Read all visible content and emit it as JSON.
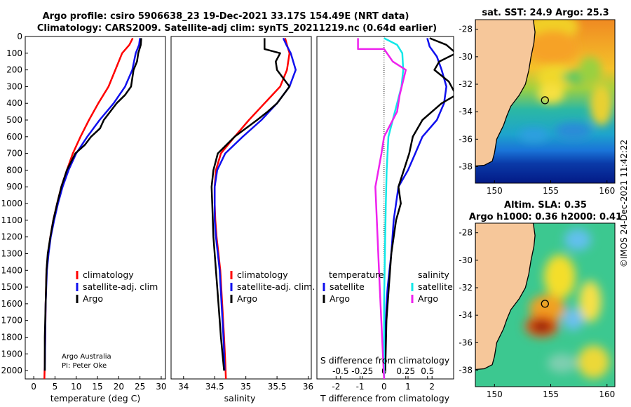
{
  "header": {
    "line1": "Argo profile: csiro 5906638_23 19-Dec-2021 33.17S 154.49E (NRT data)",
    "line2": "Climatology: CARS2009. Satellite-adj clim: synTS_20211219.nc (0.64d earlier)"
  },
  "credit": {
    "org": "Argo Australia",
    "pi": "PI: Peter Oke"
  },
  "timestamp": "©IMOS 24-Dec-2021 11:42:22",
  "colors": {
    "red": "#ff0000",
    "blue": "#1010ee",
    "black": "#000000",
    "cyan": "#11e8e8",
    "magenta": "#ee22ee",
    "land": "#f6c79a"
  },
  "chart_data": [
    {
      "id": "temperature",
      "type": "line",
      "xlabel": "temperature (deg C)",
      "xlim": [
        -2,
        31
      ],
      "xticks": [
        0,
        5,
        10,
        15,
        20,
        25,
        30
      ],
      "ylim": [
        2050,
        0
      ],
      "yticks": [
        0,
        100,
        200,
        300,
        400,
        500,
        600,
        700,
        800,
        900,
        1000,
        1100,
        1200,
        1300,
        1400,
        1500,
        1600,
        1700,
        1800,
        1900,
        2000
      ],
      "legend": {
        "entries": [
          "climatology",
          "satellite-adj. clim",
          "Argo"
        ]
      },
      "series": [
        {
          "name": "climatology",
          "color": "red",
          "x": [
            23.3,
            22.5,
            20.8,
            19.2,
            17.6,
            15.2,
            13.0,
            11.0,
            9.2,
            7.8,
            6.5,
            5.5,
            4.6,
            3.9,
            3.4,
            3.0,
            2.8,
            2.7,
            2.6,
            2.5
          ],
          "y": [
            10,
            50,
            100,
            200,
            300,
            400,
            500,
            600,
            700,
            800,
            900,
            1000,
            1100,
            1200,
            1300,
            1400,
            1600,
            1800,
            1950,
            2050
          ]
        },
        {
          "name": "satellite-adj. clim",
          "color": "blue",
          "x": [
            25.0,
            24.8,
            24.0,
            23.2,
            21.5,
            18.8,
            15.5,
            12.6,
            10.0,
            8.2,
            6.8,
            5.7,
            4.8,
            4.0,
            3.5,
            3.1,
            2.8,
            2.7,
            2.6
          ],
          "y": [
            10,
            50,
            100,
            200,
            300,
            400,
            500,
            600,
            700,
            800,
            900,
            1000,
            1100,
            1200,
            1300,
            1400,
            1600,
            1800,
            2000
          ]
        },
        {
          "name": "Argo",
          "color": "black",
          "x": [
            25.3,
            25.2,
            24.6,
            24.3,
            23.5,
            22.9,
            21.5,
            19.5,
            16.5,
            15.6,
            13.5,
            12.0,
            9.8,
            7.8,
            6.5,
            5.5,
            4.6,
            3.9,
            3.3,
            3.0,
            2.8,
            2.6,
            2.6
          ],
          "y": [
            10,
            50,
            100,
            150,
            200,
            300,
            350,
            400,
            500,
            550,
            600,
            650,
            700,
            800,
            900,
            1000,
            1100,
            1200,
            1300,
            1400,
            1600,
            1800,
            2000
          ]
        }
      ]
    },
    {
      "id": "salinity",
      "type": "line",
      "xlabel": "salinity",
      "xlim": [
        33.8,
        36.05
      ],
      "xticks": [
        34,
        34.5,
        35,
        35.5,
        36
      ],
      "ylim": [
        2050,
        0
      ],
      "legend": {
        "entries": [
          "climatology",
          "satellite-adj. clim.",
          "Argo"
        ]
      },
      "series": [
        {
          "name": "climatology",
          "color": "red",
          "x": [
            35.63,
            35.66,
            35.7,
            35.66,
            35.55,
            35.3,
            35.05,
            34.82,
            34.6,
            34.52,
            34.5,
            34.5,
            34.51,
            34.53,
            34.56,
            34.59,
            34.62,
            34.65,
            34.67,
            34.68
          ],
          "y": [
            10,
            50,
            100,
            200,
            300,
            400,
            500,
            600,
            700,
            800,
            900,
            1000,
            1100,
            1200,
            1300,
            1400,
            1600,
            1800,
            1950,
            2050
          ]
        },
        {
          "name": "satellite-adj. clim",
          "color": "blue",
          "x": [
            35.6,
            35.65,
            35.72,
            35.8,
            35.7,
            35.5,
            35.25,
            34.95,
            34.67,
            34.54,
            34.5,
            34.5,
            34.5,
            34.52,
            34.55,
            34.58,
            34.61,
            34.64,
            34.66
          ],
          "y": [
            10,
            50,
            100,
            200,
            300,
            400,
            500,
            600,
            700,
            800,
            900,
            1000,
            1100,
            1200,
            1300,
            1400,
            1600,
            1800,
            2000
          ]
        },
        {
          "name": "Argo",
          "color": "black",
          "x": [
            35.3,
            35.3,
            35.55,
            35.48,
            35.5,
            35.7,
            35.5,
            35.35,
            35.18,
            34.82,
            34.55,
            34.48,
            34.45,
            34.46,
            34.48,
            34.52,
            34.56,
            34.6,
            34.65
          ],
          "y": [
            10,
            75,
            100,
            150,
            200,
            300,
            400,
            450,
            500,
            600,
            700,
            800,
            900,
            1000,
            1200,
            1400,
            1600,
            1800,
            2000
          ]
        }
      ]
    },
    {
      "id": "difference",
      "type": "line",
      "xlabel": "T difference from climatology",
      "xlabel2": "S difference from climatology",
      "xlim": [
        -2.8,
        2.9
      ],
      "xticks": [
        -2,
        -1,
        0,
        1,
        2
      ],
      "xticks2": [
        -0.5,
        -0.25,
        0,
        0.25,
        0.5
      ],
      "ylim": [
        2050,
        0
      ],
      "legend": {
        "temperature_title": "temperature",
        "salinity_title": "salinity",
        "entries": [
          "satellite",
          "Argo",
          "satellite",
          "Argo"
        ]
      },
      "series": [
        {
          "name": "temperature satellite",
          "color": "blue",
          "x": [
            1.8,
            1.9,
            2.2,
            2.4,
            2.6,
            2.5,
            2.2,
            1.6,
            1.3,
            1.0,
            0.6,
            0.4,
            0.3,
            0.15,
            0.1,
            0.05,
            0.0,
            0.0
          ],
          "y": [
            10,
            60,
            120,
            200,
            300,
            400,
            500,
            600,
            700,
            800,
            900,
            1100,
            1300,
            1500,
            1600,
            1800,
            1950,
            2050
          ]
        },
        {
          "name": "temperature Argo",
          "color": "black",
          "x": [
            1.9,
            2.6,
            3.0,
            2.3,
            2.1,
            2.7,
            3.0,
            2.4,
            2.0,
            1.6,
            1.2,
            1.05,
            0.6,
            0.7,
            0.5,
            0.4,
            0.3,
            0.2,
            0.1,
            0.05
          ],
          "y": [
            10,
            50,
            100,
            150,
            200,
            270,
            350,
            400,
            450,
            500,
            600,
            700,
            900,
            1000,
            1100,
            1200,
            1300,
            1500,
            1700,
            2000
          ]
        },
        {
          "name": "salinity satellite",
          "color": "cyan",
          "x": [
            0.0,
            0.15,
            0.21,
            0.22,
            0.2,
            0.15,
            0.1,
            0.05,
            0.03,
            0.02,
            0.01,
            0.0,
            0.0
          ],
          "y": [
            10,
            50,
            100,
            200,
            300,
            400,
            500,
            600,
            800,
            1000,
            1300,
            1600,
            2050
          ]
        },
        {
          "name": "salinity Argo",
          "color": "magenta",
          "x": [
            -0.3,
            -0.3,
            0.0,
            0.1,
            0.25,
            0.18,
            0.15,
            0.0,
            -0.03,
            -0.1,
            -0.05,
            0.0
          ],
          "y": [
            10,
            75,
            75,
            150,
            200,
            350,
            450,
            600,
            700,
            900,
            1500,
            2050
          ]
        }
      ]
    },
    {
      "id": "sst-map",
      "type": "heatmap",
      "title": "sat. SST: 24.9 Argo: 25.3",
      "xticks": [
        150,
        155,
        160
      ],
      "yticks": [
        -28,
        -30,
        -32,
        -34,
        -36,
        -38
      ],
      "xlim": [
        148.3,
        160.7
      ],
      "ylim": [
        -39.2,
        -27.3
      ],
      "marker": {
        "lon": 154.49,
        "lat": -33.17
      },
      "coast": [
        [
          153.45,
          -27.3
        ],
        [
          153.6,
          -28.2
        ],
        [
          153.5,
          -29
        ],
        [
          153.25,
          -30
        ],
        [
          153.05,
          -31
        ],
        [
          152.75,
          -32
        ],
        [
          152.2,
          -32.8
        ],
        [
          151.45,
          -33.6
        ],
        [
          151.1,
          -34.3
        ],
        [
          150.8,
          -35
        ],
        [
          150.2,
          -36
        ],
        [
          150.0,
          -37
        ],
        [
          149.8,
          -37.6
        ],
        [
          149.1,
          -37.9
        ],
        [
          148.3,
          -37.95
        ]
      ],
      "blobs": [
        {
          "lon": 155.2,
          "lat": -27.8,
          "rx": 2.3,
          "ry": 1.0,
          "color": "#f1cf28"
        },
        {
          "lon": 155.2,
          "lat": -29.3,
          "rx": 2.2,
          "ry": 1.2,
          "color": "#f6a226"
        },
        {
          "lon": 155.4,
          "lat": -31.5,
          "rx": 1.6,
          "ry": 0.9,
          "color": "#f0d82a"
        },
        {
          "lon": 155.0,
          "lat": -32.7,
          "rx": 1.2,
          "ry": 0.7,
          "color": "#f6e040"
        },
        {
          "lon": 157.3,
          "lat": -31.5,
          "rx": 1.3,
          "ry": 0.5,
          "color": "#5ec860"
        },
        {
          "lon": 158.5,
          "lat": -31.0,
          "rx": 1.0,
          "ry": 1.0,
          "color": "#9ad040"
        },
        {
          "lon": 159.5,
          "lat": -33.5,
          "rx": 1.0,
          "ry": 1.5,
          "color": "#e8d030"
        },
        {
          "lon": 157.0,
          "lat": -35.4,
          "rx": 1.6,
          "ry": 0.6,
          "color": "#2b8bd8"
        },
        {
          "lon": 153.5,
          "lat": -35.7,
          "rx": 1.3,
          "ry": 0.5,
          "color": "#2f9fe0"
        }
      ]
    },
    {
      "id": "sla-map",
      "type": "heatmap",
      "title1": "Altim. SLA: 0.35",
      "title2": "Argo h1000: 0.36 h2000: 0.41",
      "xticks": [
        150,
        155,
        160
      ],
      "yticks": [
        -28,
        -30,
        -32,
        -34,
        -36,
        -38
      ],
      "xlim": [
        148.3,
        160.7
      ],
      "ylim": [
        -39.2,
        -27.3
      ],
      "marker": {
        "lon": 154.49,
        "lat": -33.17
      },
      "coast": [
        [
          153.45,
          -27.3
        ],
        [
          153.6,
          -28.2
        ],
        [
          153.5,
          -29
        ],
        [
          153.25,
          -30
        ],
        [
          153.05,
          -31
        ],
        [
          152.75,
          -32
        ],
        [
          152.2,
          -32.8
        ],
        [
          151.45,
          -33.6
        ],
        [
          151.1,
          -34.3
        ],
        [
          150.8,
          -35
        ],
        [
          150.2,
          -36
        ],
        [
          150.0,
          -37
        ],
        [
          149.8,
          -37.6
        ],
        [
          149.1,
          -37.9
        ],
        [
          148.3,
          -37.95
        ]
      ],
      "blobs": [
        {
          "lon": 155.8,
          "lat": -31.2,
          "rx": 1.4,
          "ry": 1.6,
          "color": "#f4de2a"
        },
        {
          "lon": 154.7,
          "lat": -33.5,
          "rx": 1.6,
          "ry": 1.0,
          "color": "#f0a020"
        },
        {
          "lon": 154.2,
          "lat": -34.8,
          "rx": 1.5,
          "ry": 0.8,
          "color": "#e85a16"
        },
        {
          "lon": 154.2,
          "lat": -34.8,
          "rx": 0.9,
          "ry": 0.45,
          "color": "#8e1408"
        },
        {
          "lon": 158.5,
          "lat": -33.0,
          "rx": 1.0,
          "ry": 1.5,
          "color": "#f6e046"
        },
        {
          "lon": 158.8,
          "lat": -37.4,
          "rx": 1.4,
          "ry": 1.2,
          "color": "#ecd838"
        },
        {
          "lon": 157.0,
          "lat": -34.3,
          "rx": 0.9,
          "ry": 0.8,
          "color": "#6cc0f0"
        },
        {
          "lon": 157.4,
          "lat": -28.5,
          "rx": 1.2,
          "ry": 0.8,
          "color": "#62c0ee"
        },
        {
          "lon": 156.0,
          "lat": -37.5,
          "rx": 1.3,
          "ry": 0.7,
          "color": "#7fcfb0"
        }
      ]
    }
  ]
}
